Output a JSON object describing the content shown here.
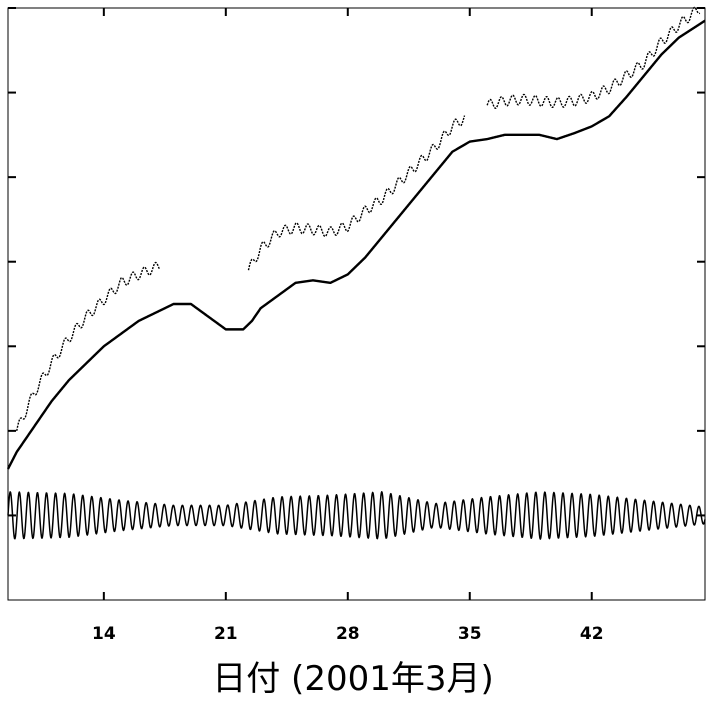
{
  "chart_data": {
    "type": "line",
    "title": "",
    "xlabel": "日付 (2001年3月)",
    "ylabel": "",
    "xlim": [
      8.5,
      48.5
    ],
    "ylim": [
      0,
      7
    ],
    "x_ticks": [
      14,
      21,
      28,
      35,
      42
    ],
    "x_tick_labels": [
      "14",
      "21",
      "28",
      "35",
      "42"
    ],
    "y_tick_count": 7,
    "y_tick_labels": [],
    "grid": false,
    "legend": "none",
    "line_color": "#000000",
    "series": [
      {
        "style": "dotted",
        "segments": [
          {
            "x": [
              9,
              10,
              11,
              12,
              13,
              14,
              15,
              16,
              17.2
            ],
            "y": [
              2.0,
              2.45,
              2.8,
              3.1,
              3.35,
              3.55,
              3.75,
              3.85,
              3.95
            ],
            "wobble": 0.06,
            "period": 0.65
          },
          {
            "x": [
              22.3,
              23,
              24,
              25,
              26,
              27,
              28,
              29,
              30,
              31,
              32,
              33,
              34,
              34.7
            ],
            "y": [
              3.9,
              4.15,
              4.35,
              4.4,
              4.38,
              4.35,
              4.42,
              4.6,
              4.75,
              4.95,
              5.15,
              5.35,
              5.6,
              5.7
            ],
            "wobble": 0.06,
            "period": 0.65
          },
          {
            "x": [
              36,
              37,
              38,
              39,
              40,
              41,
              42,
              43,
              44,
              45,
              46,
              47,
              48.2
            ],
            "y": [
              5.85,
              5.9,
              5.92,
              5.9,
              5.88,
              5.9,
              5.95,
              6.05,
              6.2,
              6.35,
              6.6,
              6.8,
              7.0
            ],
            "wobble": 0.06,
            "period": 0.65
          }
        ]
      },
      {
        "style": "solid",
        "segments": [
          {
            "x": [
              8.5,
              9,
              10,
              11,
              12,
              13,
              14,
              15,
              16,
              17,
              18,
              19,
              20,
              21,
              22,
              22.5,
              23,
              24,
              25,
              26,
              27,
              28,
              29,
              30,
              31,
              32,
              33,
              34,
              35,
              36,
              37,
              38,
              39,
              40,
              41,
              42,
              43,
              44,
              45,
              46,
              47,
              48.5
            ],
            "y": [
              1.55,
              1.75,
              2.05,
              2.35,
              2.6,
              2.8,
              3.0,
              3.15,
              3.3,
              3.4,
              3.5,
              3.5,
              3.35,
              3.2,
              3.2,
              3.3,
              3.45,
              3.6,
              3.75,
              3.78,
              3.75,
              3.85,
              4.05,
              4.3,
              4.55,
              4.8,
              5.05,
              5.3,
              5.42,
              5.45,
              5.5,
              5.5,
              5.5,
              5.45,
              5.52,
              5.6,
              5.72,
              5.95,
              6.2,
              6.45,
              6.65,
              6.85
            ],
            "wobble": 0.0,
            "period": 1.0
          }
        ]
      },
      {
        "style": "oscillating",
        "segments": [
          {
            "x": [
              8.5,
              12,
              15,
              18,
              21,
              24,
              27,
              30,
              33,
              36,
              39,
              42,
              45,
              48.5
            ],
            "y": [
              1.0,
              1.0,
              1.0,
              1.0,
              1.0,
              1.0,
              1.0,
              1.0,
              1.0,
              1.0,
              1.0,
              1.0,
              1.0,
              1.0
            ],
            "amplitude": [
              0.28,
              0.26,
              0.18,
              0.12,
              0.12,
              0.22,
              0.24,
              0.28,
              0.14,
              0.22,
              0.28,
              0.25,
              0.18,
              0.1
            ],
            "period": 0.52
          }
        ]
      }
    ]
  }
}
